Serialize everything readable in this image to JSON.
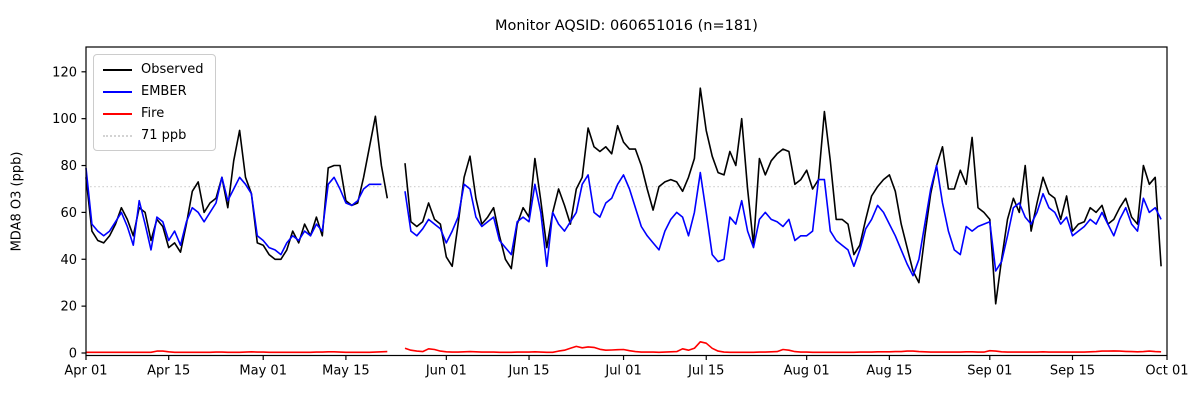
{
  "chart_data": {
    "type": "line",
    "title": "Monitor AQSID: 060651016 (n=181)",
    "ylabel": "MDA8 O3 (ppb)",
    "xlabel": "",
    "grid": false,
    "legend_position": "upper-left",
    "ylim": [
      0,
      130
    ],
    "yticks": [
      0,
      20,
      40,
      60,
      80,
      100,
      120
    ],
    "x_range_days": [
      0,
      183
    ],
    "x_start_label": "Apr 01",
    "x_end_label": "Oct 01",
    "x_ticks": [
      {
        "label": "Apr 01",
        "day": 0
      },
      {
        "label": "Apr 15",
        "day": 14
      },
      {
        "label": "May 01",
        "day": 30
      },
      {
        "label": "May 15",
        "day": 44
      },
      {
        "label": "Jun 01",
        "day": 61
      },
      {
        "label": "Jun 15",
        "day": 75
      },
      {
        "label": "Jul 01",
        "day": 91
      },
      {
        "label": "Jul 15",
        "day": 105
      },
      {
        "label": "Aug 01",
        "day": 122
      },
      {
        "label": "Aug 15",
        "day": 136
      },
      {
        "label": "Sep 01",
        "day": 153
      },
      {
        "label": "Sep 15",
        "day": 167
      },
      {
        "label": "Oct 01",
        "day": 183
      }
    ],
    "threshold": {
      "value": 71,
      "label": "71 ppb",
      "color": "#d3d3d3",
      "style": "dotted"
    },
    "legend": [
      {
        "label": "Observed",
        "color": "#000000",
        "style": "solid"
      },
      {
        "label": "EMBER",
        "color": "#0000ff",
        "style": "solid"
      },
      {
        "label": "Fire",
        "color": "#ff0000",
        "style": "solid"
      },
      {
        "label": "71 ppb",
        "color": "#d3d3d3",
        "style": "dotted"
      }
    ],
    "series": [
      {
        "name": "Observed",
        "color": "#000000",
        "values": [
          75,
          52,
          48,
          47,
          50,
          55,
          62,
          57,
          50,
          62,
          60,
          48,
          57,
          54,
          45,
          47,
          43,
          55,
          69,
          73,
          60,
          64,
          66,
          75,
          62,
          82,
          95,
          75,
          68,
          47,
          46,
          42,
          40,
          40,
          44,
          52,
          47,
          55,
          50,
          58,
          50,
          79,
          80,
          80,
          65,
          63,
          64,
          75,
          88,
          101,
          80,
          66,
          null,
          null,
          81,
          56,
          54,
          56,
          64,
          57,
          55,
          41,
          37,
          55,
          75,
          84,
          66,
          55,
          58,
          62,
          50,
          40,
          36,
          55,
          62,
          58,
          83,
          65,
          45,
          60,
          70,
          63,
          55,
          70,
          75,
          96,
          88,
          86,
          88,
          85,
          97,
          90,
          87,
          87,
          80,
          70,
          61,
          71,
          73,
          74,
          73,
          69,
          75,
          83,
          113,
          95,
          84,
          77,
          76,
          86,
          80,
          100,
          70,
          46,
          83,
          76,
          82,
          85,
          87,
          86,
          72,
          74,
          78,
          70,
          74,
          103,
          82,
          57,
          57,
          55,
          42,
          46,
          57,
          67,
          71,
          74,
          76,
          69,
          55,
          45,
          35,
          30,
          50,
          68,
          80,
          88,
          70,
          70,
          78,
          72,
          92,
          62,
          60,
          57,
          21,
          40,
          57,
          66,
          60,
          80,
          52,
          64,
          75,
          68,
          66,
          57,
          67,
          52,
          55,
          56,
          62,
          60,
          63,
          55,
          57,
          62,
          66,
          58,
          55,
          80,
          72,
          75,
          37
        ]
      },
      {
        "name": "EMBER",
        "color": "#0000ff",
        "values": [
          79,
          55,
          52,
          50,
          52,
          56,
          60,
          54,
          46,
          65,
          55,
          44,
          58,
          56,
          48,
          52,
          46,
          56,
          62,
          60,
          56,
          60,
          64,
          75,
          65,
          70,
          75,
          72,
          68,
          50,
          48,
          45,
          44,
          42,
          47,
          50,
          48,
          52,
          50,
          55,
          52,
          72,
          75,
          70,
          64,
          63,
          65,
          70,
          72,
          72,
          72,
          null,
          null,
          null,
          69,
          52,
          50,
          53,
          57,
          55,
          53,
          47,
          52,
          58,
          72,
          70,
          58,
          54,
          56,
          58,
          48,
          45,
          42,
          56,
          58,
          56,
          72,
          60,
          37,
          60,
          55,
          52,
          56,
          60,
          72,
          76,
          60,
          58,
          64,
          66,
          72,
          76,
          70,
          62,
          54,
          50,
          47,
          44,
          52,
          57,
          60,
          58,
          50,
          60,
          77,
          60,
          42,
          39,
          40,
          58,
          55,
          65,
          52,
          45,
          57,
          60,
          57,
          56,
          54,
          57,
          48,
          50,
          50,
          52,
          74,
          74,
          52,
          48,
          46,
          44,
          37,
          44,
          53,
          57,
          63,
          60,
          55,
          50,
          44,
          38,
          33,
          40,
          55,
          70,
          80,
          64,
          52,
          44,
          42,
          54,
          52,
          54,
          55,
          56,
          35,
          39,
          50,
          62,
          64,
          58,
          55,
          60,
          68,
          62,
          60,
          55,
          58,
          50,
          52,
          54,
          57,
          55,
          60,
          55,
          50,
          57,
          62,
          55,
          52,
          66,
          60,
          62,
          57
        ]
      },
      {
        "name": "Fire",
        "color": "#ff0000",
        "values": [
          0.3,
          0.3,
          0.3,
          0.3,
          0.3,
          0.3,
          0.3,
          0.3,
          0.3,
          0.3,
          0.3,
          0.3,
          0.8,
          0.8,
          0.5,
          0.3,
          0.3,
          0.3,
          0.3,
          0.3,
          0.3,
          0.3,
          0.4,
          0.4,
          0.3,
          0.3,
          0.3,
          0.4,
          0.5,
          0.4,
          0.4,
          0.3,
          0.3,
          0.3,
          0.3,
          0.3,
          0.3,
          0.3,
          0.3,
          0.4,
          0.4,
          0.5,
          0.5,
          0.4,
          0.3,
          0.3,
          0.3,
          0.3,
          0.3,
          0.4,
          0.5,
          0.6,
          null,
          null,
          2.0,
          1.2,
          0.8,
          0.6,
          1.8,
          1.5,
          0.8,
          0.5,
          0.4,
          0.4,
          0.5,
          0.6,
          0.5,
          0.4,
          0.4,
          0.4,
          0.3,
          0.3,
          0.3,
          0.4,
          0.4,
          0.4,
          0.5,
          0.4,
          0.3,
          0.3,
          0.8,
          1.2,
          2.0,
          2.8,
          2.2,
          2.6,
          2.4,
          1.6,
          1.2,
          1.3,
          1.4,
          1.5,
          1.0,
          0.6,
          0.4,
          0.4,
          0.4,
          0.3,
          0.4,
          0.5,
          0.6,
          1.8,
          1.2,
          2.0,
          4.8,
          4.2,
          2.0,
          0.8,
          0.4,
          0.3,
          0.3,
          0.3,
          0.3,
          0.3,
          0.4,
          0.4,
          0.5,
          0.6,
          1.5,
          1.2,
          0.6,
          0.4,
          0.4,
          0.3,
          0.3,
          0.3,
          0.3,
          0.3,
          0.3,
          0.3,
          0.3,
          0.4,
          0.4,
          0.4,
          0.5,
          0.5,
          0.5,
          0.6,
          0.6,
          0.8,
          0.8,
          0.6,
          0.5,
          0.4,
          0.4,
          0.4,
          0.4,
          0.4,
          0.4,
          0.5,
          0.5,
          0.4,
          0.4,
          1.0,
          0.8,
          0.5,
          0.4,
          0.4,
          0.4,
          0.4,
          0.4,
          0.4,
          0.5,
          0.4,
          0.4,
          0.4,
          0.4,
          0.4,
          0.4,
          0.4,
          0.5,
          0.6,
          0.8,
          0.8,
          0.9,
          0.8,
          0.7,
          0.6,
          0.5,
          0.6,
          0.8,
          0.6,
          0.5
        ]
      }
    ],
    "notes": {
      "missing_data_gap_days": "May 23 - May 24",
      "data_start": "Apr 01",
      "data_end": "Sep 30",
      "n_observed": 181
    }
  }
}
